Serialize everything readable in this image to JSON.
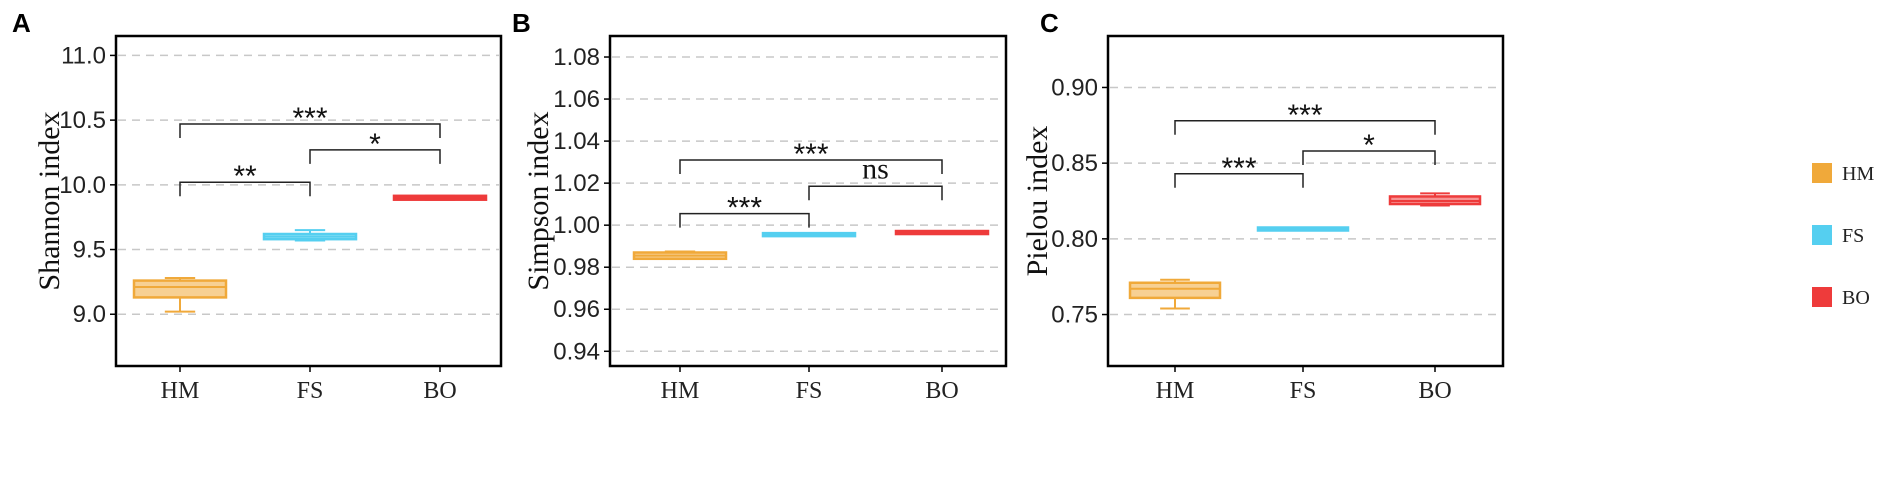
{
  "legend": [
    {
      "label": "HM",
      "color": "#F0A93A"
    },
    {
      "label": "FS",
      "color": "#55CFF0"
    },
    {
      "label": "BO",
      "color": "#EE3B3B"
    }
  ],
  "chart_data": [
    {
      "type": "box",
      "panel": "A",
      "ylabel": "Shannon index",
      "ylim": [
        8.6,
        11.15
      ],
      "yticks": [
        9.0,
        9.5,
        10.0,
        10.5,
        11.0
      ],
      "ytick_labels": [
        "9.0",
        "9.5",
        "10.0",
        "10.5",
        "11.0"
      ],
      "grid": true,
      "categories": [
        "HM",
        "FS",
        "BO"
      ],
      "boxes": [
        {
          "name": "HM",
          "min": 9.02,
          "q1": 9.13,
          "median": 9.21,
          "q3": 9.26,
          "max": 9.28
        },
        {
          "name": "FS",
          "min": 9.57,
          "q1": 9.58,
          "median": 9.6,
          "q3": 9.62,
          "max": 9.65
        },
        {
          "name": "BO",
          "min": 9.885,
          "q1": 9.885,
          "median": 9.9,
          "q3": 9.915,
          "max": 9.915
        }
      ],
      "significance": [
        {
          "from": 0,
          "to": 1,
          "y": 10.02,
          "label": "**"
        },
        {
          "from": 1,
          "to": 2,
          "y": 10.27,
          "label": "*"
        },
        {
          "from": 0,
          "to": 2,
          "y": 10.47,
          "label": "***"
        }
      ]
    },
    {
      "type": "box",
      "panel": "B",
      "ylabel": "Simpson index",
      "ylim": [
        0.933,
        1.09
      ],
      "yticks": [
        0.94,
        0.96,
        0.98,
        1.0,
        1.02,
        1.04,
        1.06,
        1.08
      ],
      "ytick_labels": [
        "0.94",
        "0.96",
        "0.98",
        "1.00",
        "1.02",
        "1.04",
        "1.06",
        "1.08"
      ],
      "grid": true,
      "categories": [
        "HM",
        "FS",
        "BO"
      ],
      "boxes": [
        {
          "name": "HM",
          "min": 0.984,
          "q1": 0.984,
          "median": 0.9855,
          "q3": 0.987,
          "max": 0.9875
        },
        {
          "name": "FS",
          "min": 0.9953,
          "q1": 0.9953,
          "median": 0.9955,
          "q3": 0.9957,
          "max": 0.9957
        },
        {
          "name": "BO",
          "min": 0.9962,
          "q1": 0.9962,
          "median": 0.9965,
          "q3": 0.9968,
          "max": 0.9968
        }
      ],
      "significance": [
        {
          "from": 0,
          "to": 1,
          "y": 1.0055,
          "label": "***"
        },
        {
          "from": 1,
          "to": 2,
          "y": 1.0185,
          "label": "ns"
        },
        {
          "from": 0,
          "to": 2,
          "y": 1.031,
          "label": "***"
        }
      ]
    },
    {
      "type": "box",
      "panel": "C",
      "ylabel": "Pielou index",
      "ylim": [
        0.716,
        0.934
      ],
      "yticks": [
        0.75,
        0.8,
        0.85,
        0.9
      ],
      "ytick_labels": [
        "0.75",
        "0.80",
        "0.85",
        "0.90"
      ],
      "grid": true,
      "categories": [
        "HM",
        "FS",
        "BO"
      ],
      "boxes": [
        {
          "name": "HM",
          "min": 0.754,
          "q1": 0.761,
          "median": 0.767,
          "q3": 0.771,
          "max": 0.773
        },
        {
          "name": "FS",
          "min": 0.806,
          "q1": 0.8062,
          "median": 0.8065,
          "q3": 0.8068,
          "max": 0.807
        },
        {
          "name": "BO",
          "min": 0.822,
          "q1": 0.823,
          "median": 0.825,
          "q3": 0.828,
          "max": 0.83
        }
      ],
      "significance": [
        {
          "from": 0,
          "to": 1,
          "y": 0.843,
          "label": "***"
        },
        {
          "from": 1,
          "to": 2,
          "y": 0.858,
          "label": "*"
        },
        {
          "from": 0,
          "to": 2,
          "y": 0.878,
          "label": "***"
        }
      ]
    }
  ]
}
